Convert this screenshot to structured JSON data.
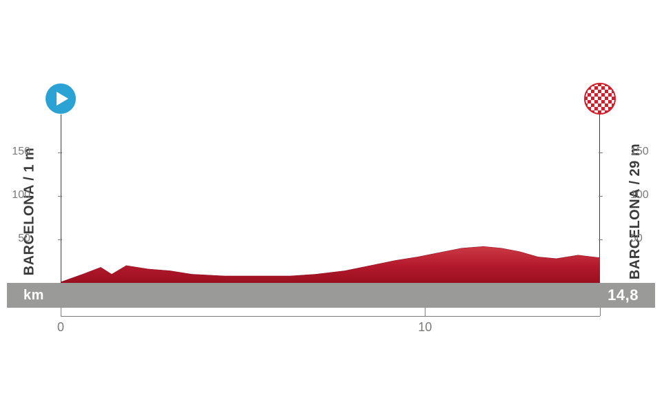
{
  "stage": {
    "start_label": "BARCELONA / 1 m",
    "finish_label": "BARCELONA / 29 m",
    "km_label": "km",
    "total_km": "14,8"
  },
  "chart": {
    "type": "area",
    "y_axis": {
      "min": 0,
      "max": 175,
      "ticks": [
        50,
        100,
        150
      ],
      "label_color": "#7a7a78",
      "fontsize": 16
    },
    "x_axis": {
      "min": 0,
      "max": 14.8,
      "ticks": [
        0,
        10
      ],
      "label_color": "#7a7a78",
      "fontsize": 18
    },
    "profile_points": [
      [
        0.0,
        1
      ],
      [
        0.6,
        10
      ],
      [
        1.1,
        18
      ],
      [
        1.4,
        10
      ],
      [
        1.8,
        20
      ],
      [
        2.4,
        16
      ],
      [
        3.0,
        14
      ],
      [
        3.6,
        10
      ],
      [
        4.5,
        8
      ],
      [
        5.5,
        8
      ],
      [
        6.3,
        8
      ],
      [
        7.0,
        10
      ],
      [
        7.8,
        14
      ],
      [
        8.5,
        20
      ],
      [
        9.2,
        26
      ],
      [
        9.8,
        30
      ],
      [
        10.4,
        35
      ],
      [
        11.0,
        40
      ],
      [
        11.6,
        42
      ],
      [
        12.1,
        40
      ],
      [
        12.6,
        36
      ],
      [
        13.1,
        30
      ],
      [
        13.6,
        28
      ],
      [
        14.2,
        32
      ],
      [
        14.8,
        29
      ]
    ],
    "fill_color": "#b2182b",
    "fill_color_light": "#cc3a45",
    "background_color": "#ffffff",
    "km_bar_color": "#9a9a98",
    "km_bar_text_color": "#ffffff",
    "start_marker_color": "#2aa3d4",
    "finish_marker_color": "#d11f2e",
    "text_color": "#3a3a3a"
  }
}
